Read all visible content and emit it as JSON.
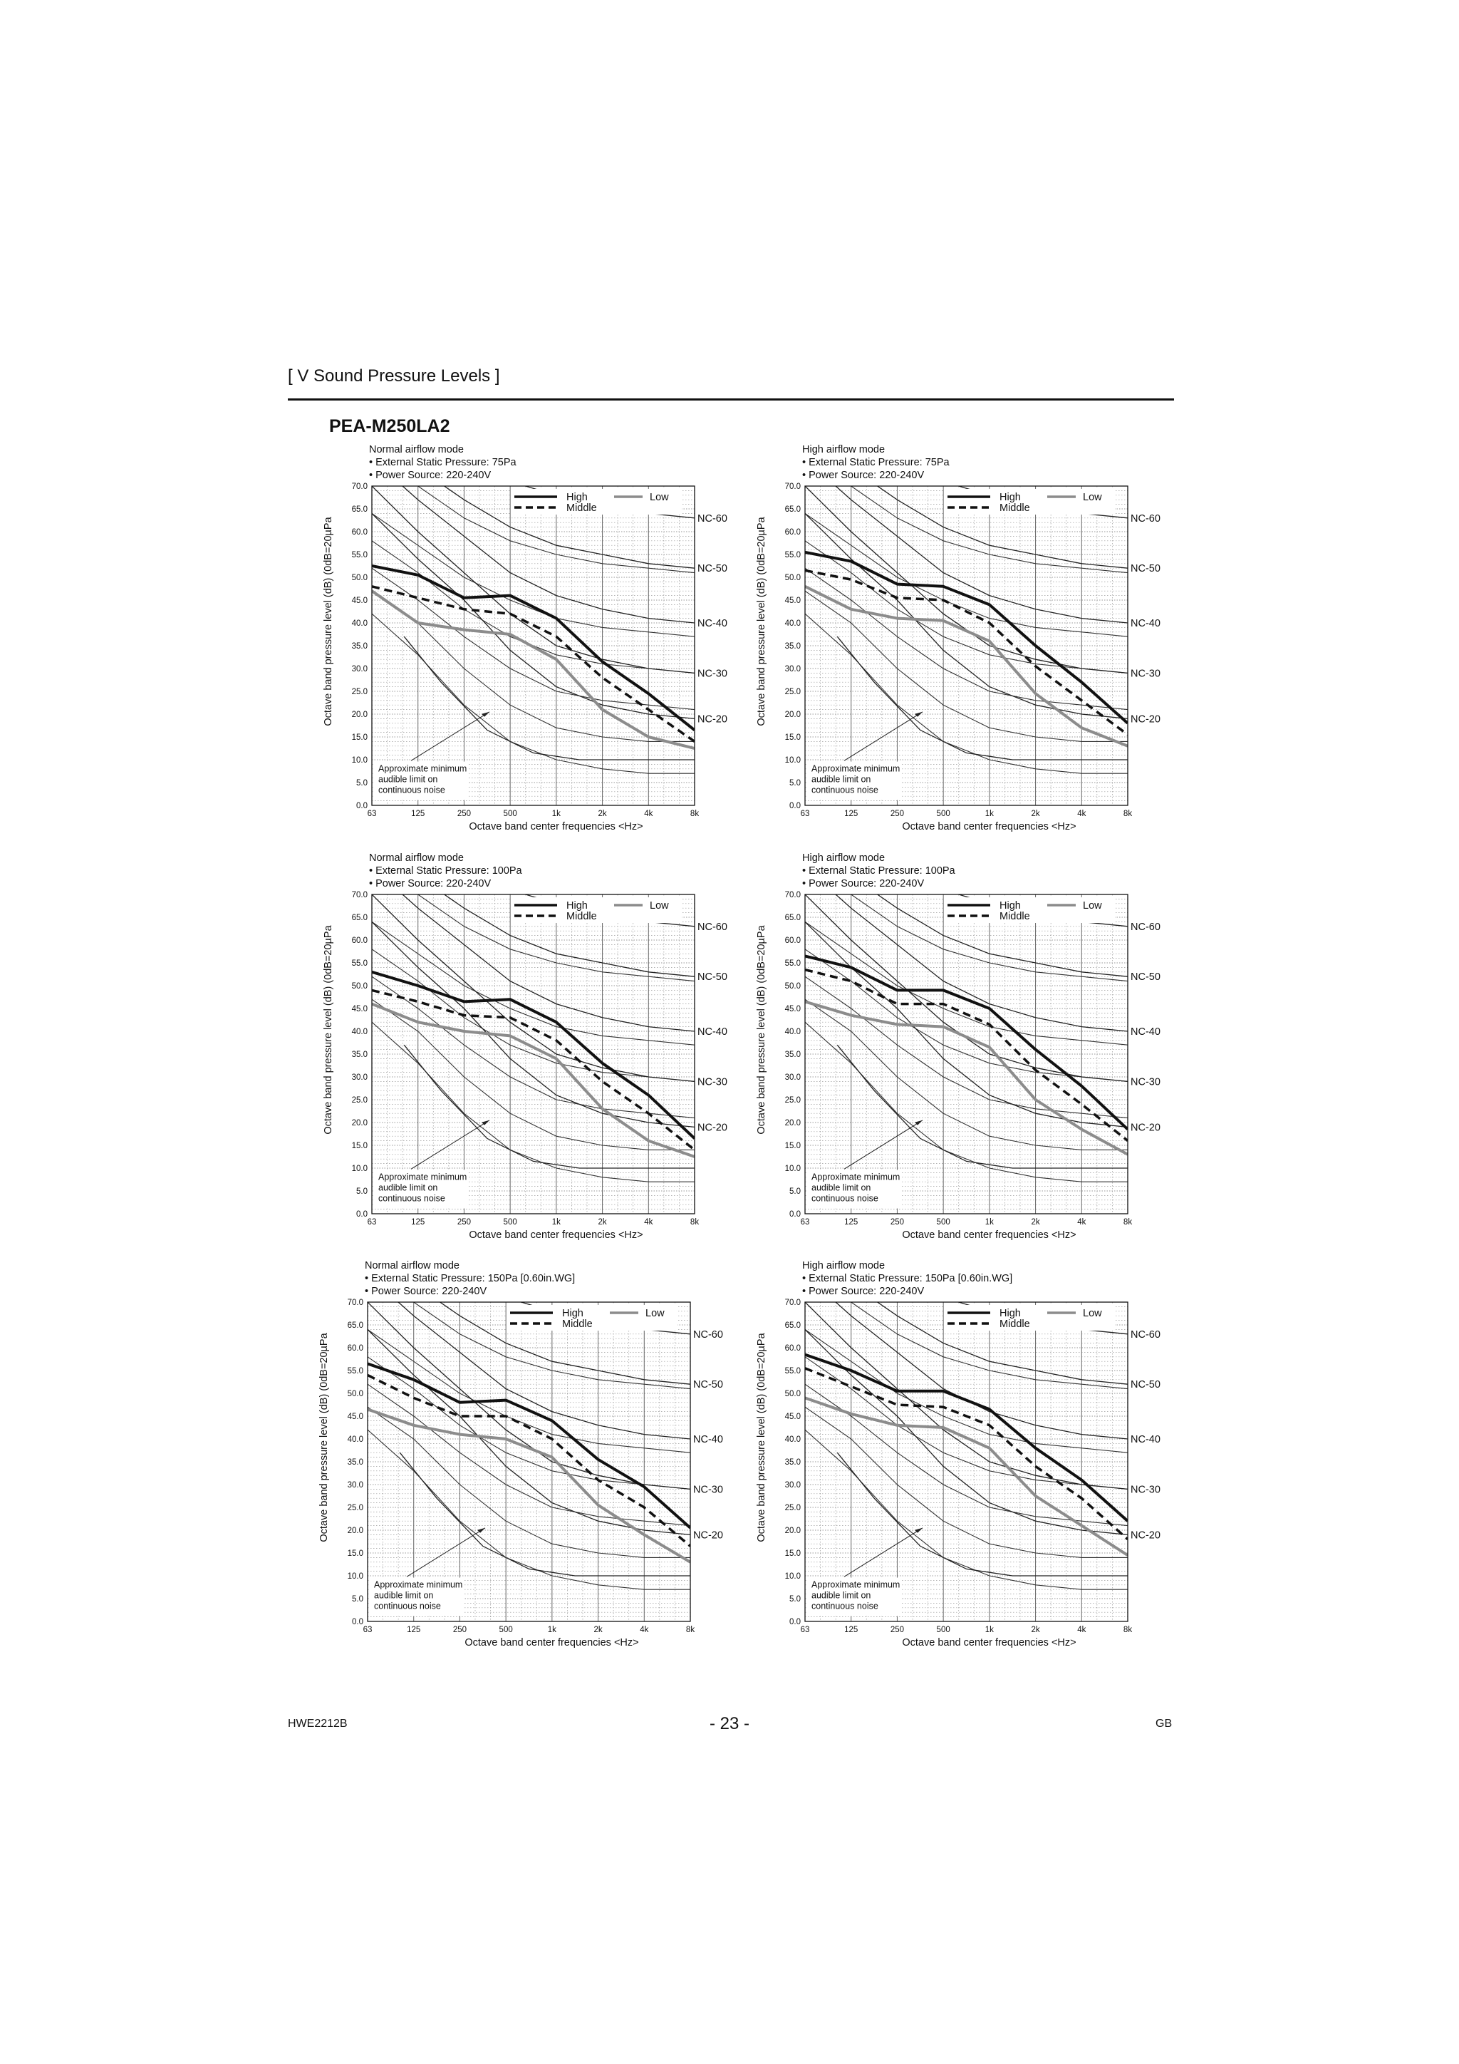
{
  "section_header": "[ V  Sound Pressure Levels ]",
  "model": "PEA-M250LA2",
  "footer": {
    "doc_code": "HWE2212B",
    "page": "- 23 -",
    "region": "GB"
  },
  "common": {
    "ylabel": "Octave band pressure level (dB) (0dB=20µPa",
    "xlabel": "Octave band center frequencies <Hz>",
    "x_ticks": [
      "63",
      "125",
      "250",
      "500",
      "1k",
      "2k",
      "4k",
      "8k"
    ],
    "y_ticks": [
      "0.0",
      "5.0",
      "10.0",
      "15.0",
      "20.0",
      "25.0",
      "30.0",
      "35.0",
      "40.0",
      "45.0",
      "50.0",
      "55.0",
      "60.0",
      "65.0",
      "70.0"
    ],
    "ylim": [
      0,
      70
    ],
    "legend": {
      "high": "High",
      "middle": "Middle",
      "low": "Low"
    },
    "nc_labels": [
      "NC-60",
      "NC-50",
      "NC-40",
      "NC-30",
      "NC-20"
    ],
    "audible_note": [
      "Approximate minimum",
      "audible limit on",
      "continuous noise"
    ],
    "colors": {
      "high": "#111111",
      "middle": "#111111",
      "low": "#8c8c8c",
      "nc": "#333333",
      "grid": "#888888"
    }
  },
  "chart_data": [
    {
      "type": "line",
      "conditions": [
        "Normal airflow mode",
        "• External Static Pressure: 75Pa",
        "• Power Source: 220-240V"
      ],
      "x": [
        "63",
        "125",
        "250",
        "500",
        "1k",
        "2k",
        "4k",
        "8k"
      ],
      "series": [
        {
          "name": "High",
          "values": [
            52.5,
            50.5,
            45.5,
            46,
            41,
            31.5,
            24.5,
            16.5
          ]
        },
        {
          "name": "Middle",
          "values": [
            48,
            45.5,
            43,
            42,
            37,
            28,
            21,
            14
          ]
        },
        {
          "name": "Low",
          "values": [
            47,
            40,
            38.5,
            37.5,
            32,
            21,
            15,
            12.5
          ]
        }
      ]
    },
    {
      "type": "line",
      "conditions": [
        "High airflow mode",
        "• External Static Pressure: 75Pa",
        "• Power Source: 220-240V"
      ],
      "x": [
        "63",
        "125",
        "250",
        "500",
        "1k",
        "2k",
        "4k",
        "8k"
      ],
      "series": [
        {
          "name": "High",
          "values": [
            55.5,
            53.5,
            48.5,
            48,
            44,
            35,
            27,
            18
          ]
        },
        {
          "name": "Middle",
          "values": [
            51.5,
            49.5,
            45.5,
            45,
            40,
            30.5,
            23,
            15.5
          ]
        },
        {
          "name": "Low",
          "values": [
            48,
            43,
            41,
            40.5,
            36,
            24.5,
            17,
            13
          ]
        }
      ]
    },
    {
      "type": "line",
      "conditions": [
        "Normal airflow mode",
        "• External Static Pressure: 100Pa",
        "• Power Source: 220-240V"
      ],
      "x": [
        "63",
        "125",
        "250",
        "500",
        "1k",
        "2k",
        "4k",
        "8k"
      ],
      "series": [
        {
          "name": "High",
          "values": [
            53,
            50,
            46.5,
            47,
            42,
            33,
            26,
            16.5
          ]
        },
        {
          "name": "Middle",
          "values": [
            49,
            46.5,
            43.5,
            43,
            38,
            29,
            22,
            14
          ]
        },
        {
          "name": "Low",
          "values": [
            46,
            42,
            40,
            39,
            34,
            23,
            16,
            12.5
          ]
        }
      ]
    },
    {
      "type": "line",
      "conditions": [
        "High airflow mode",
        "• External Static Pressure: 100Pa",
        "• Power Source: 220-240V"
      ],
      "x": [
        "63",
        "125",
        "250",
        "500",
        "1k",
        "2k",
        "4k",
        "8k"
      ],
      "series": [
        {
          "name": "High",
          "values": [
            56.5,
            54,
            49,
            49,
            45,
            36,
            28,
            18.5
          ]
        },
        {
          "name": "Middle",
          "values": [
            53.5,
            51,
            46,
            46,
            41.5,
            31.5,
            24,
            16
          ]
        },
        {
          "name": "Low",
          "values": [
            46.5,
            43.5,
            41.5,
            41,
            36.5,
            25,
            18.5,
            13
          ]
        }
      ]
    },
    {
      "type": "line",
      "conditions": [
        "Normal airflow mode",
        "• External Static Pressure: 150Pa [0.60in.WG]",
        "• Power Source: 220-240V"
      ],
      "x": [
        "63",
        "125",
        "250",
        "500",
        "1k",
        "2k",
        "4k",
        "8k"
      ],
      "series": [
        {
          "name": "High",
          "values": [
            56.5,
            53,
            48,
            48.5,
            44,
            35.5,
            29.5,
            20.5
          ]
        },
        {
          "name": "Middle",
          "values": [
            54,
            49,
            45,
            45,
            40,
            31,
            25,
            16.5
          ]
        },
        {
          "name": "Low",
          "values": [
            46.5,
            43,
            41,
            40,
            36,
            25.5,
            19,
            13
          ]
        }
      ]
    },
    {
      "type": "line",
      "conditions": [
        "High airflow mode",
        "• External Static Pressure: 150Pa [0.60in.WG]",
        "• Power Source: 220-240V"
      ],
      "x": [
        "63",
        "125",
        "250",
        "500",
        "1k",
        "2k",
        "4k",
        "8k"
      ],
      "series": [
        {
          "name": "High",
          "values": [
            58.5,
            55,
            50.5,
            50.5,
            46.5,
            38,
            31,
            22
          ]
        },
        {
          "name": "Middle",
          "values": [
            55.5,
            51.5,
            47.5,
            47,
            43,
            34,
            27,
            18
          ]
        },
        {
          "name": "Low",
          "values": [
            49,
            45.5,
            43,
            42.5,
            38,
            27.5,
            21,
            14.5
          ]
        }
      ]
    }
  ]
}
